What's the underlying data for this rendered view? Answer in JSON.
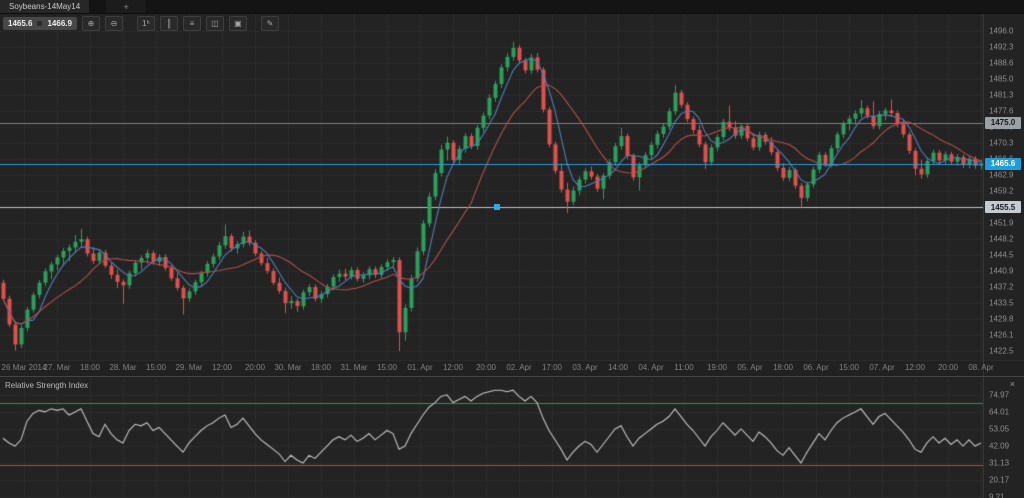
{
  "tab_bar": {
    "active_tab": "Soybeans-14May14",
    "new_tab": "+"
  },
  "toolbar": {
    "bid": "1465.6",
    "ask": "1466.9",
    "buttons": [
      {
        "name": "zoom-in",
        "glyph": "⊕"
      },
      {
        "name": "zoom-out",
        "glyph": "⊖"
      },
      {
        "name": "timeframe",
        "glyph": "1ʰ",
        "gap": true
      },
      {
        "name": "chart-type",
        "glyph": "║"
      },
      {
        "name": "indicators",
        "glyph": "≡"
      },
      {
        "name": "link-charts",
        "glyph": "◫"
      },
      {
        "name": "templates",
        "glyph": "▣"
      },
      {
        "name": "draw-tools",
        "glyph": "✎",
        "gap": true
      }
    ]
  },
  "price_axis": {
    "ticks": [
      "1496.0",
      "1492.3",
      "1488.6",
      "1485.0",
      "1481.3",
      "1477.6",
      "1474.0",
      "1470.3",
      "1466.6",
      "1462.9",
      "1459.2",
      "1455.6",
      "1451.9",
      "1448.2",
      "1444.5",
      "1440.9",
      "1437.2",
      "1433.5",
      "1429.8",
      "1426.1",
      "1422.5"
    ],
    "level_badges": [
      {
        "label": "1475.0",
        "value": 1475.0,
        "bg": "#9ba2a7",
        "fg": "#17191b"
      },
      {
        "label": "1455.5",
        "value": 1455.5,
        "bg": "#c6cbd0",
        "fg": "#17191b"
      }
    ],
    "current_badge": {
      "label": "1465.6",
      "value": 1465.6,
      "bg": "#1f9ddb",
      "fg": "#ffffff"
    }
  },
  "time_axis": {
    "labels": [
      "26 Mar 2014",
      "27. Mar",
      "18:00",
      "28. Mar",
      "15:00",
      "29. Mar",
      "12:00",
      "20:00",
      "30. Mar",
      "18:00",
      "31. Mar",
      "15:00",
      "01. Apr",
      "12:00",
      "20:00",
      "02. Apr",
      "17:00",
      "03. Apr",
      "14:00",
      "04. Apr",
      "11:00",
      "19:00",
      "05. Apr",
      "18:00",
      "06. Apr",
      "15:00",
      "07. Apr",
      "12:00",
      "20:00",
      "08. Apr"
    ]
  },
  "rsi_panel": {
    "title": "Relative Strength Index",
    "close_glyph": "×",
    "axis_labels": [
      "74.97",
      "64.01",
      "53.05",
      "42.09",
      "31.13",
      "20.17",
      "9.21"
    ]
  },
  "colors": {
    "bg": "#232323",
    "grid": "#2d2d2d",
    "bull": "#2aa05a",
    "bear": "#df504e",
    "current_line": "#259fd9",
    "level_line": "#808080",
    "selected_line": "#bfc6cc",
    "rsi_line": "#c4c4c4",
    "overbought_line": "#3e8e5c",
    "oversold_line": "#b44a44"
  },
  "chart_data": {
    "type": "candlestick",
    "symbol": "Soybeans-14May14",
    "ylim": [
      1420.4,
      1500.2
    ],
    "ma_fast": {
      "period": 5,
      "color": "#4d7fba"
    },
    "ma_slow": {
      "period": 13,
      "color": "#b0504c"
    },
    "price_lines": [
      {
        "value": 1475.0,
        "style": "level"
      },
      {
        "value": 1455.5,
        "style": "selected",
        "handle_x": 497
      },
      {
        "value": 1465.6,
        "style": "current"
      }
    ],
    "candles": [
      [
        1438.2,
        1438.9,
        1434.0,
        1434.5
      ],
      [
        1434.5,
        1435.2,
        1428.0,
        1428.6
      ],
      [
        1428.6,
        1429.3,
        1422.6,
        1424.0
      ],
      [
        1424.0,
        1428.5,
        1423.2,
        1427.8
      ],
      [
        1427.8,
        1432.6,
        1427.0,
        1432.0
      ],
      [
        1432.0,
        1436.0,
        1431.3,
        1435.4
      ],
      [
        1435.4,
        1438.8,
        1434.6,
        1438.2
      ],
      [
        1438.2,
        1441.5,
        1437.4,
        1440.8
      ],
      [
        1440.8,
        1443.0,
        1439.0,
        1442.4
      ],
      [
        1442.4,
        1444.6,
        1441.0,
        1444.0
      ],
      [
        1444.0,
        1446.2,
        1442.2,
        1445.5
      ],
      [
        1445.5,
        1447.0,
        1443.1,
        1446.3
      ],
      [
        1446.3,
        1449.2,
        1445.0,
        1447.6
      ],
      [
        1447.6,
        1450.6,
        1446.3,
        1448.2
      ],
      [
        1448.2,
        1448.8,
        1444.2,
        1444.9
      ],
      [
        1444.9,
        1446.4,
        1442.5,
        1443.2
      ],
      [
        1443.2,
        1445.9,
        1442.4,
        1445.1
      ],
      [
        1445.1,
        1445.7,
        1441.6,
        1442.1
      ],
      [
        1442.1,
        1442.8,
        1439.1,
        1440.0
      ],
      [
        1440.0,
        1441.2,
        1437.0,
        1438.4
      ],
      [
        1438.4,
        1439.0,
        1433.4,
        1437.6
      ],
      [
        1437.6,
        1441.0,
        1436.8,
        1440.4
      ],
      [
        1440.4,
        1443.4,
        1439.6,
        1442.8
      ],
      [
        1442.8,
        1444.5,
        1441.2,
        1443.9
      ],
      [
        1443.9,
        1445.8,
        1442.6,
        1445.0
      ],
      [
        1445.0,
        1445.6,
        1442.3,
        1443.0
      ],
      [
        1443.0,
        1444.8,
        1442.0,
        1444.1
      ],
      [
        1444.1,
        1444.7,
        1441.0,
        1441.6
      ],
      [
        1441.6,
        1442.2,
        1438.6,
        1439.2
      ],
      [
        1439.2,
        1440.5,
        1436.4,
        1437.0
      ],
      [
        1437.0,
        1437.6,
        1430.9,
        1434.6
      ],
      [
        1434.6,
        1436.9,
        1433.8,
        1436.2
      ],
      [
        1436.2,
        1438.9,
        1435.4,
        1438.3
      ],
      [
        1438.3,
        1441.0,
        1437.5,
        1440.4
      ],
      [
        1440.4,
        1443.1,
        1439.6,
        1442.5
      ],
      [
        1442.5,
        1444.9,
        1441.7,
        1444.2
      ],
      [
        1444.2,
        1447.6,
        1443.4,
        1446.8
      ],
      [
        1446.8,
        1451.6,
        1446.0,
        1448.9
      ],
      [
        1448.9,
        1449.5,
        1445.4,
        1446.1
      ],
      [
        1446.1,
        1447.8,
        1444.9,
        1447.1
      ],
      [
        1447.1,
        1449.9,
        1446.3,
        1448.8
      ],
      [
        1448.8,
        1450.2,
        1446.7,
        1447.4
      ],
      [
        1447.4,
        1448.0,
        1444.3,
        1444.9
      ],
      [
        1444.9,
        1445.5,
        1442.1,
        1442.7
      ],
      [
        1442.7,
        1443.9,
        1440.3,
        1440.9
      ],
      [
        1440.9,
        1441.5,
        1437.6,
        1438.2
      ],
      [
        1438.2,
        1439.4,
        1435.7,
        1436.3
      ],
      [
        1436.3,
        1437.0,
        1431.2,
        1433.5
      ],
      [
        1433.5,
        1435.1,
        1432.2,
        1434.0
      ],
      [
        1434.0,
        1434.6,
        1431.5,
        1432.8
      ],
      [
        1432.8,
        1436.6,
        1432.0,
        1436.0
      ],
      [
        1436.0,
        1437.8,
        1435.1,
        1437.2
      ],
      [
        1437.2,
        1437.8,
        1433.9,
        1434.5
      ],
      [
        1434.5,
        1436.3,
        1433.6,
        1435.6
      ],
      [
        1435.6,
        1437.9,
        1434.8,
        1437.3
      ],
      [
        1437.3,
        1440.1,
        1436.5,
        1439.5
      ],
      [
        1439.5,
        1441.2,
        1438.4,
        1440.3
      ],
      [
        1440.3,
        1441.4,
        1438.8,
        1439.6
      ],
      [
        1439.6,
        1441.8,
        1438.9,
        1441.1
      ],
      [
        1441.1,
        1441.7,
        1438.5,
        1439.1
      ],
      [
        1439.1,
        1440.6,
        1438.2,
        1439.9
      ],
      [
        1439.9,
        1442.0,
        1439.0,
        1441.3
      ],
      [
        1441.3,
        1441.9,
        1439.3,
        1440.0
      ],
      [
        1440.0,
        1442.4,
        1439.2,
        1441.8
      ],
      [
        1441.8,
        1443.6,
        1440.9,
        1442.9
      ],
      [
        1442.9,
        1444.1,
        1441.5,
        1443.4
      ],
      [
        1443.4,
        1444.0,
        1422.5,
        1426.8
      ],
      [
        1426.8,
        1433.2,
        1424.9,
        1432.4
      ],
      [
        1432.4,
        1440.0,
        1431.6,
        1439.2
      ],
      [
        1439.2,
        1446.3,
        1438.4,
        1445.4
      ],
      [
        1445.4,
        1452.6,
        1444.6,
        1451.8
      ],
      [
        1451.8,
        1458.9,
        1451.0,
        1458.0
      ],
      [
        1458.0,
        1464.3,
        1457.2,
        1463.4
      ],
      [
        1463.4,
        1469.9,
        1462.6,
        1468.8
      ],
      [
        1468.8,
        1471.8,
        1466.3,
        1470.4
      ],
      [
        1470.4,
        1471.0,
        1465.8,
        1466.4
      ],
      [
        1466.4,
        1469.7,
        1465.5,
        1469.0
      ],
      [
        1469.0,
        1472.6,
        1468.1,
        1471.9
      ],
      [
        1471.9,
        1472.5,
        1468.9,
        1469.6
      ],
      [
        1469.6,
        1474.5,
        1468.8,
        1473.8
      ],
      [
        1473.8,
        1477.3,
        1472.9,
        1476.6
      ],
      [
        1476.6,
        1481.5,
        1475.8,
        1480.7
      ],
      [
        1480.7,
        1484.6,
        1479.8,
        1483.9
      ],
      [
        1483.9,
        1488.4,
        1483.0,
        1487.7
      ],
      [
        1487.7,
        1490.9,
        1486.8,
        1490.1
      ],
      [
        1490.1,
        1493.6,
        1489.2,
        1492.2
      ],
      [
        1492.2,
        1492.8,
        1488.6,
        1489.3
      ],
      [
        1489.3,
        1489.9,
        1486.3,
        1487.0
      ],
      [
        1487.0,
        1490.8,
        1486.2,
        1490.0
      ],
      [
        1490.0,
        1491.0,
        1486.5,
        1487.2
      ],
      [
        1487.2,
        1487.8,
        1477.3,
        1478.0
      ],
      [
        1478.0,
        1478.6,
        1469.3,
        1470.0
      ],
      [
        1470.0,
        1470.6,
        1463.2,
        1463.9
      ],
      [
        1463.9,
        1465.6,
        1458.9,
        1459.6
      ],
      [
        1459.6,
        1461.2,
        1454.2,
        1456.8
      ],
      [
        1456.8,
        1460.3,
        1456.0,
        1459.4
      ],
      [
        1459.4,
        1462.6,
        1458.3,
        1461.9
      ],
      [
        1461.9,
        1464.5,
        1461.0,
        1463.8
      ],
      [
        1463.8,
        1464.9,
        1461.9,
        1462.6
      ],
      [
        1462.6,
        1463.2,
        1459.1,
        1459.8
      ],
      [
        1459.8,
        1463.4,
        1457.4,
        1462.8
      ],
      [
        1462.8,
        1466.6,
        1462.0,
        1465.9
      ],
      [
        1465.9,
        1470.3,
        1465.1,
        1469.6
      ],
      [
        1469.6,
        1473.8,
        1468.8,
        1471.9
      ],
      [
        1471.9,
        1472.5,
        1466.6,
        1467.3
      ],
      [
        1467.3,
        1467.9,
        1461.7,
        1462.4
      ],
      [
        1462.4,
        1465.9,
        1459.4,
        1465.2
      ],
      [
        1465.2,
        1468.2,
        1464.4,
        1467.5
      ],
      [
        1467.5,
        1470.6,
        1466.7,
        1469.9
      ],
      [
        1469.9,
        1473.1,
        1469.0,
        1472.4
      ],
      [
        1472.4,
        1474.8,
        1471.5,
        1474.1
      ],
      [
        1474.1,
        1478.3,
        1473.3,
        1477.6
      ],
      [
        1477.6,
        1483.6,
        1476.8,
        1481.9
      ],
      [
        1481.9,
        1482.5,
        1478.4,
        1479.1
      ],
      [
        1479.1,
        1479.7,
        1475.1,
        1475.8
      ],
      [
        1475.8,
        1476.4,
        1472.6,
        1473.3
      ],
      [
        1473.3,
        1474.4,
        1469.3,
        1470.0
      ],
      [
        1470.0,
        1470.6,
        1464.3,
        1465.9
      ],
      [
        1465.9,
        1470.0,
        1465.1,
        1469.3
      ],
      [
        1469.3,
        1472.4,
        1468.4,
        1471.7
      ],
      [
        1471.7,
        1475.9,
        1470.9,
        1475.2
      ],
      [
        1475.2,
        1478.9,
        1473.1,
        1473.8
      ],
      [
        1473.8,
        1475.4,
        1471.3,
        1472.0
      ],
      [
        1472.0,
        1474.9,
        1471.2,
        1474.2
      ],
      [
        1474.2,
        1474.8,
        1470.7,
        1471.4
      ],
      [
        1471.4,
        1472.5,
        1468.6,
        1469.3
      ],
      [
        1469.3,
        1472.9,
        1468.5,
        1472.2
      ],
      [
        1472.2,
        1472.8,
        1469.9,
        1470.6
      ],
      [
        1470.6,
        1471.7,
        1467.5,
        1468.2
      ],
      [
        1468.2,
        1468.8,
        1463.9,
        1464.6
      ],
      [
        1464.6,
        1465.7,
        1461.6,
        1462.3
      ],
      [
        1462.3,
        1464.8,
        1461.5,
        1464.1
      ],
      [
        1464.1,
        1464.7,
        1459.8,
        1460.5
      ],
      [
        1460.5,
        1461.1,
        1455.3,
        1457.7
      ],
      [
        1457.7,
        1461.4,
        1456.9,
        1460.8
      ],
      [
        1460.8,
        1464.9,
        1460.0,
        1464.2
      ],
      [
        1464.2,
        1468.3,
        1463.4,
        1467.6
      ],
      [
        1467.6,
        1468.2,
        1464.8,
        1465.5
      ],
      [
        1465.5,
        1469.8,
        1464.7,
        1469.1
      ],
      [
        1469.1,
        1472.9,
        1468.3,
        1472.3
      ],
      [
        1472.3,
        1475.4,
        1471.4,
        1474.7
      ],
      [
        1474.7,
        1476.6,
        1473.2,
        1475.9
      ],
      [
        1475.9,
        1477.8,
        1474.6,
        1477.1
      ],
      [
        1477.1,
        1480.2,
        1476.2,
        1478.3
      ],
      [
        1478.3,
        1478.9,
        1475.9,
        1476.6
      ],
      [
        1476.6,
        1479.9,
        1473.5,
        1474.2
      ],
      [
        1474.2,
        1477.7,
        1473.4,
        1477.0
      ],
      [
        1477.0,
        1478.4,
        1475.5,
        1477.8
      ],
      [
        1477.8,
        1480.3,
        1476.4,
        1477.2
      ],
      [
        1477.2,
        1477.8,
        1473.9,
        1474.6
      ],
      [
        1474.6,
        1475.7,
        1471.6,
        1472.3
      ],
      [
        1472.3,
        1472.9,
        1467.8,
        1468.5
      ],
      [
        1468.5,
        1469.1,
        1462.9,
        1464.4
      ],
      [
        1464.4,
        1466.4,
        1462.1,
        1463.1
      ],
      [
        1463.1,
        1466.9,
        1462.3,
        1466.2
      ],
      [
        1466.2,
        1468.8,
        1465.4,
        1468.1
      ],
      [
        1468.1,
        1468.7,
        1465.6,
        1466.3
      ],
      [
        1466.3,
        1468.4,
        1465.5,
        1467.7
      ],
      [
        1467.7,
        1468.3,
        1465.3,
        1466.0
      ],
      [
        1466.0,
        1467.8,
        1465.1,
        1467.1
      ],
      [
        1467.1,
        1467.7,
        1464.6,
        1465.3
      ],
      [
        1465.3,
        1467.3,
        1464.5,
        1466.7
      ],
      [
        1466.7,
        1467.3,
        1464.4,
        1465.1
      ],
      [
        1465.1,
        1466.5,
        1464.2,
        1465.6
      ]
    ],
    "rsi": {
      "type": "line",
      "overbought": 70,
      "oversold": 30,
      "ylim": [
        8.5,
        86.5
      ],
      "values": [
        47,
        44,
        42,
        46,
        58,
        63,
        65,
        64,
        66,
        65,
        66,
        62,
        64,
        66,
        58,
        50,
        48,
        56,
        50,
        46,
        44,
        52,
        56,
        55,
        57,
        52,
        54,
        50,
        46,
        42,
        38,
        44,
        48,
        52,
        55,
        57,
        60,
        62,
        54,
        56,
        60,
        55,
        50,
        46,
        43,
        40,
        37,
        32,
        36,
        33,
        31,
        36,
        34,
        38,
        42,
        46,
        48,
        46,
        49,
        45,
        47,
        50,
        46,
        49,
        52,
        50,
        40,
        42,
        50,
        56,
        62,
        67,
        70,
        74,
        75,
        70,
        72,
        74,
        71,
        74,
        76,
        77,
        78,
        78,
        77,
        78,
        74,
        71,
        74,
        70,
        60,
        52,
        46,
        40,
        33,
        38,
        42,
        45,
        43,
        38,
        43,
        48,
        53,
        55,
        48,
        42,
        47,
        50,
        53,
        56,
        58,
        61,
        66,
        61,
        56,
        52,
        47,
        42,
        48,
        52,
        57,
        53,
        49,
        53,
        49,
        45,
        51,
        48,
        44,
        39,
        36,
        41,
        36,
        31,
        38,
        44,
        50,
        46,
        52,
        57,
        60,
        62,
        64,
        66,
        61,
        56,
        61,
        63,
        59,
        55,
        51,
        46,
        40,
        38,
        44,
        48,
        44,
        47,
        43,
        46,
        42,
        46,
        42,
        44
      ]
    }
  }
}
